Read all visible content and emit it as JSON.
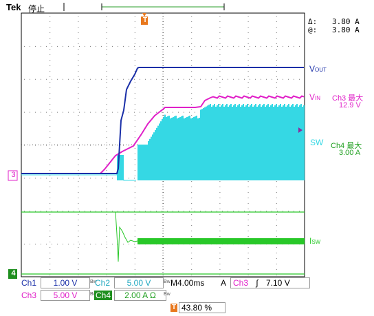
{
  "header": {
    "brand": "Tek",
    "run_state": "停止",
    "trigger_marker": "T"
  },
  "cursor_readout": {
    "delta_symbol": "Δ:",
    "delta_value": "3.80 A",
    "at_symbol": "@:",
    "at_value": "3.80 A"
  },
  "trace_labels": {
    "vout": "V",
    "vout_sub": "OUT",
    "vin": "V",
    "vin_sub": "IN",
    "sw": "SW",
    "isw": "I",
    "isw_sub": "SW"
  },
  "ch3_readout": {
    "title": "Ch3 最大",
    "value": "12.9 V"
  },
  "ch4_readout": {
    "title": "Ch4 最大",
    "value": "3.00 A"
  },
  "ground_markers": {
    "ch3": "3",
    "ch4": "4"
  },
  "status_bar": {
    "row1": {
      "ch1_label": "Ch1",
      "ch1_scale": "1.00 V",
      "ch2_label": "Ch2",
      "ch2_scale": "5.00 V",
      "timebase": "M4.00ms",
      "trig_mode": "A",
      "trig_source": "Ch3",
      "trig_slope": "∫",
      "trig_level": "7.10 V"
    },
    "row2": {
      "ch3_label": "Ch3",
      "ch3_scale": "5.00 V",
      "ch4_label": "Ch4",
      "ch4_scale": "2.00 A Ω",
      "trig_pos_marker": "T",
      "trig_pos": "43.80 %"
    }
  },
  "colors": {
    "ch1_vout": "#1a2fa8",
    "ch2_sw": "#35d8e4",
    "ch3_vin": "#e020c8",
    "ch4_isw": "#28c828",
    "trigger": "#e8781e",
    "grid": "#000000"
  }
}
